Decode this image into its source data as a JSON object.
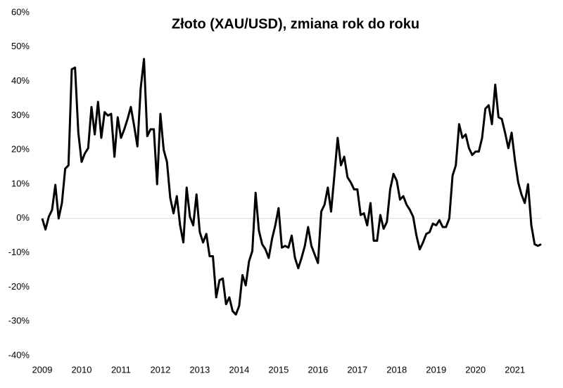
{
  "chart_data": {
    "type": "line",
    "title": "Złoto (XAU/USD), zmiana rok do roku",
    "categories": [
      "2009",
      null,
      null,
      null,
      null,
      null,
      null,
      null,
      null,
      null,
      null,
      null,
      "2010",
      null,
      null,
      null,
      null,
      null,
      null,
      null,
      null,
      null,
      null,
      null,
      "2011",
      null,
      null,
      null,
      null,
      null,
      null,
      null,
      null,
      null,
      null,
      null,
      "2012",
      null,
      null,
      null,
      null,
      null,
      null,
      null,
      null,
      null,
      null,
      null,
      "2013",
      null,
      null,
      null,
      null,
      null,
      null,
      null,
      null,
      null,
      null,
      null,
      "2014",
      null,
      null,
      null,
      null,
      null,
      null,
      null,
      null,
      null,
      null,
      null,
      "2015",
      null,
      null,
      null,
      null,
      null,
      null,
      null,
      null,
      null,
      null,
      null,
      "2016",
      null,
      null,
      null,
      null,
      null,
      null,
      null,
      null,
      null,
      null,
      null,
      "2017",
      null,
      null,
      null,
      null,
      null,
      null,
      null,
      null,
      null,
      null,
      null,
      "2018",
      null,
      null,
      null,
      null,
      null,
      null,
      null,
      null,
      null,
      null,
      null,
      "2019",
      null,
      null,
      null,
      null,
      null,
      null,
      null,
      null,
      null,
      null,
      null,
      "2020",
      null,
      null,
      null,
      null,
      null,
      null,
      null,
      null,
      null,
      null,
      null,
      "2021",
      null,
      null,
      null,
      null,
      null,
      null,
      null,
      null
    ],
    "series": [
      {
        "color": "#000000",
        "values": [
          0,
          -3.2,
          0.5,
          2.5,
          9.8,
          0,
          4.5,
          14.5,
          15.5,
          43.5,
          44,
          25,
          16.5,
          19,
          20.5,
          32.5,
          24.5,
          34,
          23.5,
          31,
          30,
          30.5,
          18,
          29.5,
          23.5,
          26,
          29,
          32.5,
          27,
          21,
          38,
          46.5,
          24,
          26,
          26,
          10,
          30.5,
          20,
          16.5,
          6,
          1.5,
          6.5,
          -2,
          -7,
          9,
          0.5,
          -2,
          7,
          -4,
          -7,
          -4.5,
          -11,
          -11,
          -23,
          -18,
          -17.5,
          -25,
          -23,
          -27,
          -28,
          -25.5,
          -16.5,
          -19.5,
          -12.5,
          -9.5,
          7.5,
          -3.5,
          -7.5,
          -9,
          -11.5,
          -6,
          -2,
          3,
          -8.5,
          -8,
          -8.5,
          -5,
          -11.5,
          -14.5,
          -11.5,
          -8,
          -2.5,
          -8,
          -10.5,
          -13,
          2,
          4,
          9,
          2,
          12.5,
          23.5,
          15.5,
          18,
          12,
          10.5,
          8.5,
          8.5,
          1,
          1.5,
          -2,
          4.5,
          -6.5,
          -6.5,
          1,
          -3,
          -1,
          8.5,
          13,
          11,
          5.5,
          6.5,
          4,
          2.5,
          0.5,
          -5,
          -9,
          -7,
          -4.5,
          -4,
          -1.5,
          -2,
          -0.5,
          -2.5,
          -2.5,
          0,
          12.5,
          15.5,
          27.5,
          23.5,
          24.5,
          20.5,
          18.5,
          19.5,
          19.5,
          23.5,
          32,
          33,
          27.5,
          39,
          29.5,
          29,
          25,
          20.5,
          25,
          17,
          10.5,
          7,
          4.5,
          10,
          -2,
          -7.5,
          -8,
          -7.5
        ]
      }
    ],
    "ylim": [
      -40,
      60
    ],
    "yticks": [
      {
        "value": -40,
        "label": "-40%"
      },
      {
        "value": -30,
        "label": "-30%"
      },
      {
        "value": -20,
        "label": "-20%"
      },
      {
        "value": -10,
        "label": "-10%"
      },
      {
        "value": 0,
        "label": "0%"
      },
      {
        "value": 10,
        "label": "10%"
      },
      {
        "value": 20,
        "label": "20%"
      },
      {
        "value": 30,
        "label": "30%"
      },
      {
        "value": 40,
        "label": "40%"
      },
      {
        "value": 50,
        "label": "50%"
      },
      {
        "value": 60,
        "label": "60%"
      }
    ]
  }
}
